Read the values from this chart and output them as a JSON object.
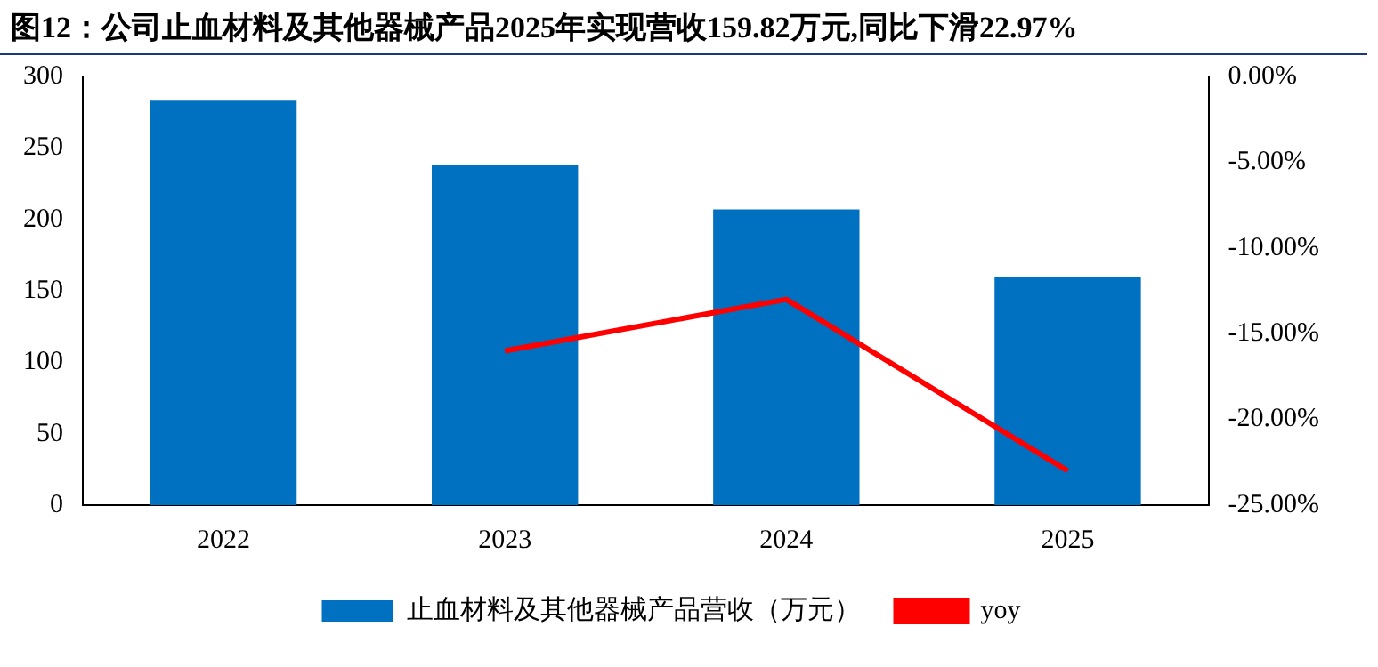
{
  "chart_data": {
    "type": "bar",
    "title": "图12：公司止血材料及其他器械产品2025年实现营收159.82万元,同比下滑22.97%",
    "categories": [
      "2022",
      "2023",
      "2024",
      "2025"
    ],
    "series": [
      {
        "name": "止血材料及其他器械产品营收（万元）",
        "color": "#0070c0",
        "values": [
          283,
          238,
          207,
          160
        ]
      },
      {
        "name": "yoy",
        "type": "line",
        "axis": "y2",
        "color": "#ff0000",
        "values": [
          null,
          -16,
          -13,
          -23
        ]
      }
    ],
    "ylim": [
      0,
      300
    ],
    "yticks": [
      0,
      50,
      100,
      150,
      200,
      250,
      300
    ],
    "y2lim": [
      -25,
      0
    ],
    "y2ticks": [
      {
        "value": 0,
        "label": "0.00%"
      },
      {
        "value": -5,
        "label": "-5.00%"
      },
      {
        "value": -10,
        "label": "-10.00%"
      },
      {
        "value": -15,
        "label": "-15.00%"
      },
      {
        "value": -20,
        "label": "-20.00%"
      },
      {
        "value": -25,
        "label": "-25.00%"
      }
    ],
    "grid": false,
    "legend": "bottom",
    "marker": "none",
    "line_style": "solid"
  }
}
